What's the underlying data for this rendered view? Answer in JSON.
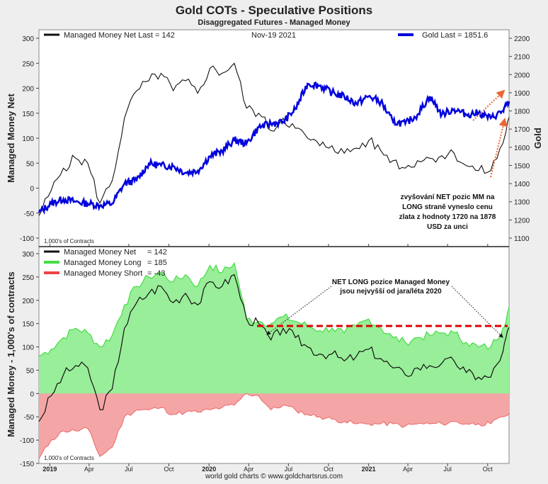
{
  "title": "Gold COTs - Speculative Positions",
  "subtitle": "Disaggregated Futures - Managed Money",
  "footer": "world gold charts © www.goldchartsrus.com",
  "top_panel": {
    "left_axis_label": "Managed Money Net",
    "right_axis_label": "Gold",
    "units_note": "1,000's of Contracts",
    "date_note": "Nov-19  2021",
    "legend_net": "Managed Money Net   Last = 142",
    "legend_gold": "Gold Last = 1851.6",
    "annotation": [
      "zvyšování NET pozic MM na",
      "LONG straně vyneslo cenu",
      "zlata z hodnoty 1720 na 1878",
      "USD za unci"
    ]
  },
  "bottom_panel": {
    "left_axis_label": "Managed Money - 1,000's of contracts",
    "units_note": "1,000's of Contracts",
    "legend_net": "Managed Money Net",
    "legend_net_value": "= 142",
    "legend_long": "Managed Money Long",
    "legend_long_value": "= 185",
    "legend_short": "Managed Money Short",
    "legend_short_value": "= -43",
    "annotation": [
      "NET LONG pozice Managed Money",
      "jsou nejvyšší od jara/léta 2020"
    ]
  },
  "x_tick_labels": [
    "2019",
    "Apr",
    "Jul",
    "Oct",
    "2020",
    "Apr",
    "Jul",
    "Oct",
    "2021",
    "Apr",
    "Jul",
    "Oct"
  ],
  "colors": {
    "net": "#111111",
    "gold": "#0000dd",
    "long": "#44dd44",
    "long_fill": "#99ee99",
    "short": "#ee6666",
    "short_fill": "#f4a6a6",
    "red_dash": "#dd0000",
    "orange": "#ee6633"
  },
  "chart_data": [
    {
      "type": "line",
      "title": "Gold COTs - Speculative Positions",
      "x_range": [
        "2018-12-07",
        "2021-11-19"
      ],
      "ylabel": "Managed Money Net",
      "ylim": [
        -100,
        300
      ],
      "y2label": "Gold",
      "y2lim": [
        1100,
        2200
      ],
      "series": [
        {
          "name": "Managed Money Net",
          "axis": "left",
          "last": 142,
          "x": [
            "2018-12-07",
            "2019-01-04",
            "2019-02-01",
            "2019-03-01",
            "2019-03-29",
            "2019-04-26",
            "2019-05-24",
            "2019-06-21",
            "2019-07-19",
            "2019-08-16",
            "2019-09-13",
            "2019-10-11",
            "2019-11-08",
            "2019-12-06",
            "2020-01-03",
            "2020-01-31",
            "2020-02-28",
            "2020-03-27",
            "2020-04-24",
            "2020-05-22",
            "2020-06-19",
            "2020-07-17",
            "2020-08-14",
            "2020-09-11",
            "2020-10-09",
            "2020-11-06",
            "2020-12-04",
            "2021-01-01",
            "2021-01-29",
            "2021-02-26",
            "2021-03-26",
            "2021-04-23",
            "2021-05-21",
            "2021-06-18",
            "2021-07-16",
            "2021-08-13",
            "2021-09-10",
            "2021-10-08",
            "2021-11-05",
            "2021-11-19"
          ],
          "y": [
            -55,
            -5,
            40,
            60,
            50,
            -30,
            15,
            140,
            195,
            215,
            230,
            195,
            215,
            190,
            240,
            230,
            250,
            160,
            150,
            115,
            140,
            120,
            100,
            85,
            85,
            70,
            80,
            95,
            75,
            55,
            40,
            55,
            60,
            65,
            70,
            45,
            35,
            35,
            90,
            142
          ]
        },
        {
          "name": "Gold",
          "axis": "right",
          "last": 1851.6,
          "x": [
            "2018-12-07",
            "2019-01-04",
            "2019-02-01",
            "2019-03-01",
            "2019-03-29",
            "2019-04-26",
            "2019-05-24",
            "2019-06-21",
            "2019-07-19",
            "2019-08-16",
            "2019-09-13",
            "2019-10-11",
            "2019-11-08",
            "2019-12-06",
            "2020-01-03",
            "2020-01-31",
            "2020-02-28",
            "2020-03-27",
            "2020-04-24",
            "2020-05-22",
            "2020-06-19",
            "2020-07-17",
            "2020-08-14",
            "2020-09-11",
            "2020-10-09",
            "2020-11-06",
            "2020-12-04",
            "2021-01-01",
            "2021-01-29",
            "2021-02-26",
            "2021-03-26",
            "2021-04-23",
            "2021-05-21",
            "2021-06-18",
            "2021-07-16",
            "2021-08-13",
            "2021-09-10",
            "2021-10-08",
            "2021-11-05",
            "2021-11-19"
          ],
          "y": [
            1240,
            1290,
            1315,
            1300,
            1290,
            1280,
            1290,
            1400,
            1420,
            1510,
            1500,
            1495,
            1460,
            1470,
            1550,
            1580,
            1640,
            1620,
            1710,
            1730,
            1740,
            1810,
            1950,
            1940,
            1900,
            1880,
            1840,
            1880,
            1850,
            1740,
            1730,
            1780,
            1880,
            1780,
            1810,
            1780,
            1790,
            1760,
            1800,
            1851.6
          ]
        }
      ]
    },
    {
      "type": "area",
      "ylabel": "Managed Money - 1,000's of contracts",
      "ylim": [
        -150,
        300
      ],
      "x_range": [
        "2018-12-07",
        "2021-11-19"
      ],
      "series": [
        {
          "name": "Managed Money Net",
          "last": 142,
          "x": [
            "2018-12-07",
            "2019-01-04",
            "2019-02-01",
            "2019-03-01",
            "2019-03-29",
            "2019-04-26",
            "2019-05-24",
            "2019-06-21",
            "2019-07-19",
            "2019-08-16",
            "2019-09-13",
            "2019-10-11",
            "2019-11-08",
            "2019-12-06",
            "2020-01-03",
            "2020-01-31",
            "2020-02-28",
            "2020-03-27",
            "2020-04-24",
            "2020-05-22",
            "2020-06-19",
            "2020-07-17",
            "2020-08-14",
            "2020-09-11",
            "2020-10-09",
            "2020-11-06",
            "2020-12-04",
            "2021-01-01",
            "2021-01-29",
            "2021-02-26",
            "2021-03-26",
            "2021-04-23",
            "2021-05-21",
            "2021-06-18",
            "2021-07-16",
            "2021-08-13",
            "2021-09-10",
            "2021-10-08",
            "2021-11-05",
            "2021-11-19"
          ],
          "y": [
            -60,
            -5,
            40,
            60,
            55,
            -35,
            10,
            140,
            195,
            215,
            230,
            195,
            215,
            190,
            240,
            230,
            255,
            160,
            150,
            115,
            140,
            120,
            100,
            85,
            85,
            70,
            80,
            95,
            75,
            55,
            40,
            55,
            60,
            65,
            70,
            45,
            35,
            35,
            90,
            142
          ]
        },
        {
          "name": "Managed Money Long",
          "last": 185,
          "x": [
            "2018-12-07",
            "2019-01-04",
            "2019-02-01",
            "2019-03-01",
            "2019-03-29",
            "2019-04-26",
            "2019-05-24",
            "2019-06-21",
            "2019-07-19",
            "2019-08-16",
            "2019-09-13",
            "2019-10-11",
            "2019-11-08",
            "2019-12-06",
            "2020-01-03",
            "2020-01-31",
            "2020-02-28",
            "2020-03-27",
            "2020-04-24",
            "2020-05-22",
            "2020-06-19",
            "2020-07-17",
            "2020-08-14",
            "2020-09-11",
            "2020-10-09",
            "2020-11-06",
            "2020-12-04",
            "2021-01-01",
            "2021-01-29",
            "2021-02-26",
            "2021-03-26",
            "2021-04-23",
            "2021-05-21",
            "2021-06-18",
            "2021-07-16",
            "2021-08-13",
            "2021-09-10",
            "2021-10-08",
            "2021-11-05",
            "2021-11-19"
          ],
          "y": [
            80,
            95,
            120,
            140,
            130,
            100,
            125,
            190,
            230,
            250,
            260,
            240,
            255,
            230,
            275,
            260,
            280,
            160,
            155,
            150,
            165,
            155,
            145,
            135,
            140,
            130,
            145,
            160,
            140,
            120,
            110,
            120,
            125,
            130,
            130,
            110,
            100,
            100,
            140,
            185
          ]
        },
        {
          "name": "Managed Money Short",
          "last": -43,
          "x": [
            "2018-12-07",
            "2019-01-04",
            "2019-02-01",
            "2019-03-01",
            "2019-03-29",
            "2019-04-26",
            "2019-05-24",
            "2019-06-21",
            "2019-07-19",
            "2019-08-16",
            "2019-09-13",
            "2019-10-11",
            "2019-11-08",
            "2019-12-06",
            "2020-01-03",
            "2020-01-31",
            "2020-02-28",
            "2020-03-27",
            "2020-04-24",
            "2020-05-22",
            "2020-06-19",
            "2020-07-17",
            "2020-08-14",
            "2020-09-11",
            "2020-10-09",
            "2020-11-06",
            "2020-12-04",
            "2021-01-01",
            "2021-01-29",
            "2021-02-26",
            "2021-03-26",
            "2021-04-23",
            "2021-05-21",
            "2021-06-18",
            "2021-07-16",
            "2021-08-13",
            "2021-09-10",
            "2021-10-08",
            "2021-11-05",
            "2021-11-19"
          ],
          "y": [
            -140,
            -100,
            -80,
            -80,
            -75,
            -135,
            -115,
            -50,
            -35,
            -35,
            -30,
            -45,
            -40,
            -40,
            -35,
            -30,
            -25,
            0,
            -5,
            -35,
            -25,
            -35,
            -45,
            -50,
            -55,
            -60,
            -65,
            -65,
            -65,
            -65,
            -70,
            -65,
            -65,
            -65,
            -60,
            -65,
            -65,
            -65,
            -50,
            -43
          ]
        }
      ],
      "threshold_line": 145
    }
  ]
}
